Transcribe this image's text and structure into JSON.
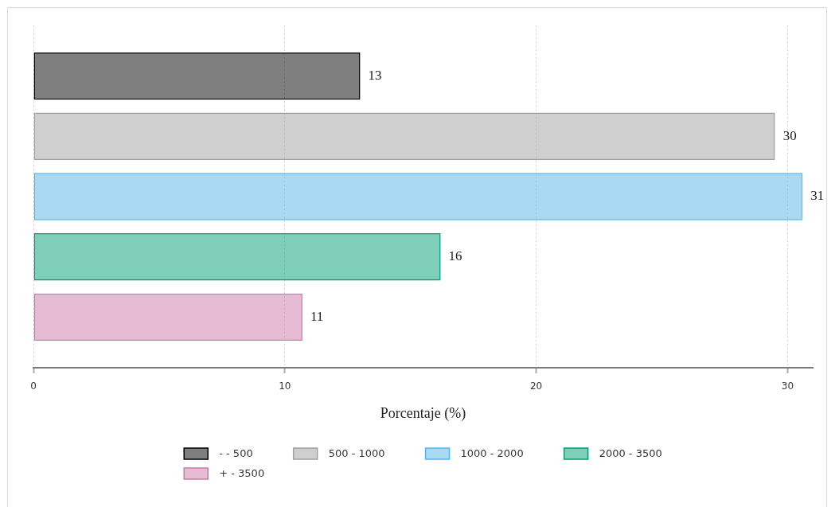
{
  "chart_data": {
    "type": "bar",
    "orientation": "horizontal",
    "categories": [
      null
    ],
    "series": [
      {
        "name": "- - 500",
        "color": "#000000",
        "values": [
          13.0
        ],
        "value_labels": [
          "13"
        ]
      },
      {
        "name": "500 - 1000",
        "color": "#a0a0a0",
        "values": [
          29.5
        ],
        "value_labels": [
          "30"
        ]
      },
      {
        "name": "1000 - 2000",
        "color": "#56b4e9",
        "values": [
          30.6
        ],
        "value_labels": [
          "31"
        ]
      },
      {
        "name": "2000 - 3500",
        "color": "#009e73",
        "values": [
          16.2
        ],
        "value_labels": [
          "16"
        ]
      },
      {
        "name": "+ - 3500",
        "color": "#cc79a7",
        "values": [
          10.7
        ],
        "value_labels": [
          "11"
        ]
      }
    ],
    "xlabel": "Porcentaje (%)",
    "xlim": [
      0,
      31
    ],
    "xticks": [
      0,
      10,
      20,
      30
    ],
    "grid": "x",
    "legend": "bottom"
  }
}
